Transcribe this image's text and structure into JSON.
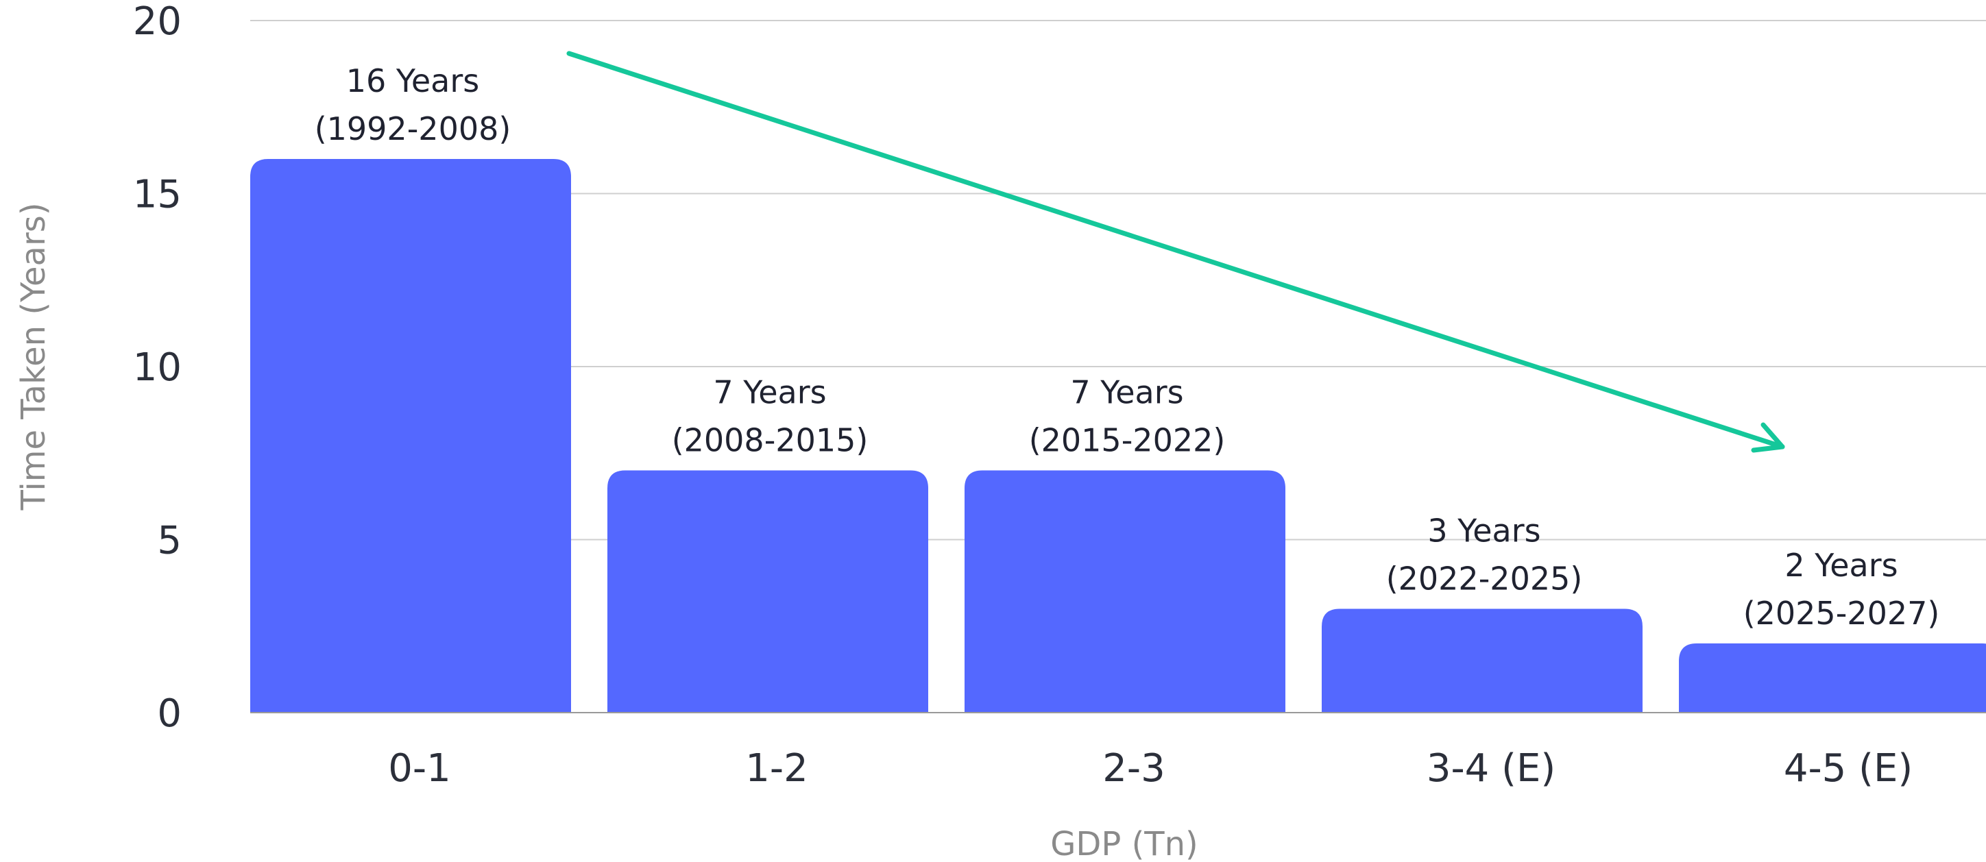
{
  "chart_data": {
    "type": "bar",
    "title": "",
    "xlabel": "GDP (Tn)",
    "ylabel": "Time Taken (Years)",
    "categories": [
      "0-1",
      "1-2",
      "2-3",
      "3-4 (E)",
      "4-5 (E)"
    ],
    "values": [
      16,
      7,
      7,
      3,
      2
    ],
    "data_labels": [
      [
        "16 Years",
        "(1992-2008)"
      ],
      [
        "7 Years",
        "(2008-2015)"
      ],
      [
        "7 Years",
        "(2015-2022)"
      ],
      [
        "3 Years",
        "(2022-2025)"
      ],
      [
        "2 Years",
        "(2025-2027)"
      ]
    ],
    "yticks": [
      0,
      5,
      10,
      15,
      20
    ],
    "ylim": [
      0,
      20
    ],
    "grid": true,
    "legend": "none",
    "trend_arrow": true,
    "colors": {
      "bar": "#5468FF",
      "trend": "#15C79A"
    }
  }
}
